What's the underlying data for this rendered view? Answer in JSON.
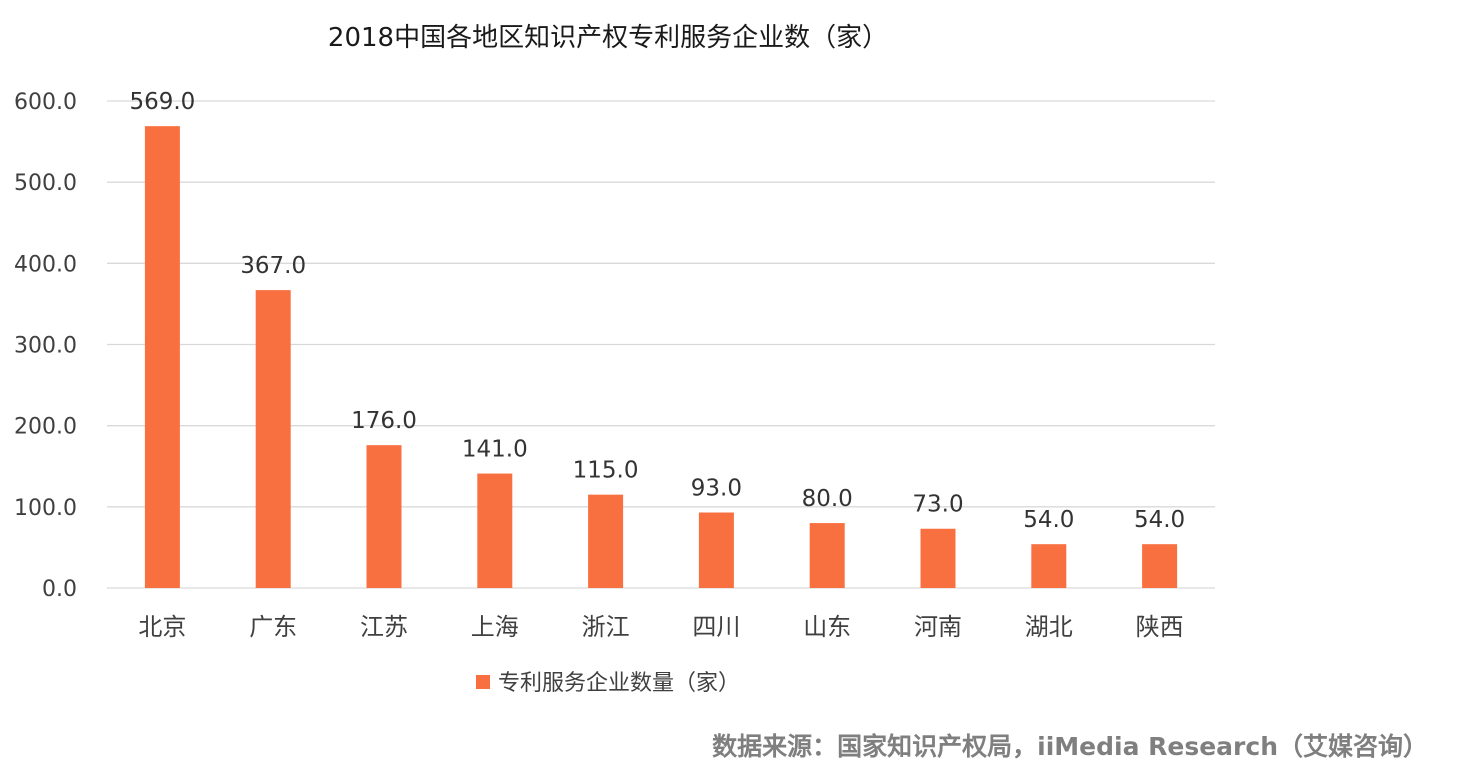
{
  "chart_data": {
    "type": "bar",
    "title": "2018中国各地区知识产权专利服务企业数（家）",
    "categories": [
      "北京",
      "广东",
      "江苏",
      "上海",
      "浙江",
      "四川",
      "山东",
      "河南",
      "湖北",
      "陕西"
    ],
    "series": [
      {
        "name": "专利服务企业数量（家）",
        "values": [
          569.0,
          367.0,
          176.0,
          141.0,
          115.0,
          93.0,
          80.0,
          73.0,
          54.0,
          54.0
        ],
        "data_labels": [
          "569.0",
          "367.0",
          "176.0",
          "141.0",
          "115.0",
          "93.0",
          "80.0",
          "73.0",
          "54.0",
          "54.0"
        ],
        "color": "#F97040"
      }
    ],
    "yticks": [
      0,
      100,
      200,
      300,
      400,
      500,
      600
    ],
    "ytick_labels": [
      "0.0",
      "100.0",
      "200.0",
      "300.0",
      "400.0",
      "500.0",
      "600.0"
    ],
    "ylim": [
      0,
      600
    ],
    "xlabel": "",
    "ylabel": "",
    "grid": true,
    "legend_position": "bottom"
  },
  "source_note": "数据来源：国家知识产权局，iiMedia Research（艾媒咨询）"
}
